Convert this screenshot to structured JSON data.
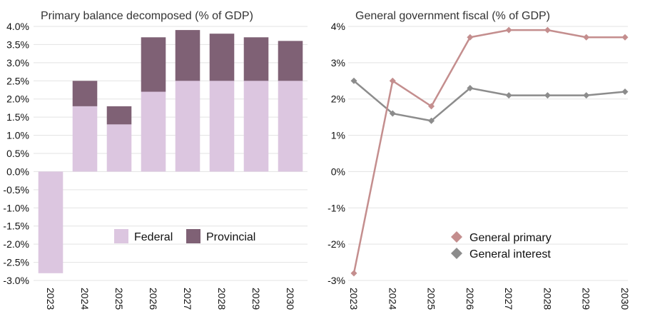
{
  "chart_data": [
    {
      "type": "bar",
      "stacked": true,
      "title": "Primary balance decomposed (% of GDP)",
      "categories": [
        "2023",
        "2024",
        "2025",
        "2026",
        "2027",
        "2028",
        "2029",
        "2030"
      ],
      "series": [
        {
          "name": "Federal",
          "color": "#dcc6e0",
          "values": [
            -2.8,
            1.8,
            1.3,
            2.2,
            2.5,
            2.5,
            2.5,
            2.5
          ]
        },
        {
          "name": "Provincial",
          "color": "#7f6175",
          "values": [
            0.0,
            0.7,
            0.5,
            1.5,
            1.4,
            1.3,
            1.2,
            1.1
          ]
        }
      ],
      "ylim": [
        -3.0,
        4.0
      ],
      "yticks": [
        4.0,
        3.5,
        3.0,
        2.5,
        2.0,
        1.5,
        1.0,
        0.5,
        0.0,
        -0.5,
        -1.0,
        -1.5,
        -2.0,
        -2.5,
        -3.0
      ],
      "ytick_labels": [
        "4.0%",
        "3.5%",
        "3.0%",
        "2.5%",
        "2.0%",
        "1.5%",
        "1.0%",
        "0.5%",
        "0.0%",
        "-0.5%",
        "-1.0%",
        "-1.5%",
        "-2.0%",
        "-2.5%",
        "-3.0%"
      ],
      "legend": "bottom-center",
      "grid": true
    },
    {
      "type": "line",
      "title": "General government fiscal (% of GDP)",
      "categories": [
        "2023",
        "2024",
        "2025",
        "2026",
        "2027",
        "2028",
        "2029",
        "2030"
      ],
      "series": [
        {
          "name": "General primary",
          "color": "#c48e8e",
          "values": [
            -2.8,
            2.5,
            1.8,
            3.7,
            3.9,
            3.9,
            3.7,
            3.7
          ]
        },
        {
          "name": "General interest",
          "color": "#8c8c8c",
          "values": [
            2.5,
            1.6,
            1.4,
            2.3,
            2.1,
            2.1,
            2.1,
            2.2
          ]
        }
      ],
      "ylim": [
        -3,
        4
      ],
      "yticks": [
        4,
        3,
        2,
        1,
        0,
        -1,
        -2,
        -3
      ],
      "ytick_labels": [
        "4%",
        "3%",
        "2%",
        "1%",
        "0%",
        "-1%",
        "-2%",
        "-3%"
      ],
      "legend": "bottom-center",
      "grid": true
    }
  ]
}
